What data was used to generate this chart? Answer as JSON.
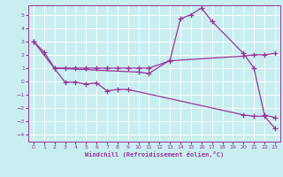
{
  "xlabel": "Windchill (Refroidissement éolien,°C)",
  "background_color": "#c8eef0",
  "grid_color": "#ffffff",
  "line_color": "#993399",
  "xlim": [
    -0.5,
    23.5
  ],
  "ylim": [
    -4.5,
    5.7
  ],
  "xticks": [
    0,
    1,
    2,
    3,
    4,
    5,
    6,
    7,
    8,
    9,
    10,
    11,
    12,
    13,
    14,
    15,
    16,
    17,
    18,
    19,
    20,
    21,
    22,
    23
  ],
  "yticks": [
    -4,
    -3,
    -2,
    -1,
    0,
    1,
    2,
    3,
    4,
    5
  ],
  "line1_x": [
    0,
    1,
    2,
    10,
    11,
    13,
    14,
    15,
    16,
    17,
    20,
    21,
    22,
    23
  ],
  "line1_y": [
    3.0,
    2.2,
    1.0,
    0.7,
    0.6,
    1.6,
    4.7,
    5.0,
    5.5,
    4.5,
    2.1,
    1.0,
    -2.5,
    -2.7
  ],
  "line2_x": [
    2,
    3,
    4,
    5,
    6,
    7,
    8,
    9,
    10,
    11,
    13,
    20,
    21,
    22,
    23
  ],
  "line2_y": [
    1.0,
    1.0,
    1.0,
    1.0,
    1.0,
    1.0,
    1.0,
    1.0,
    1.0,
    1.0,
    1.55,
    1.9,
    2.0,
    2.0,
    2.1
  ],
  "line3_x": [
    0,
    3,
    4,
    5,
    6,
    7,
    8,
    9,
    20,
    21,
    22,
    23
  ],
  "line3_y": [
    3.0,
    -0.05,
    -0.05,
    -0.2,
    -0.1,
    -0.7,
    -0.6,
    -0.6,
    -2.5,
    -2.6,
    -2.6,
    -3.5
  ],
  "marker": "+",
  "markersize": 4,
  "linewidth": 0.9
}
